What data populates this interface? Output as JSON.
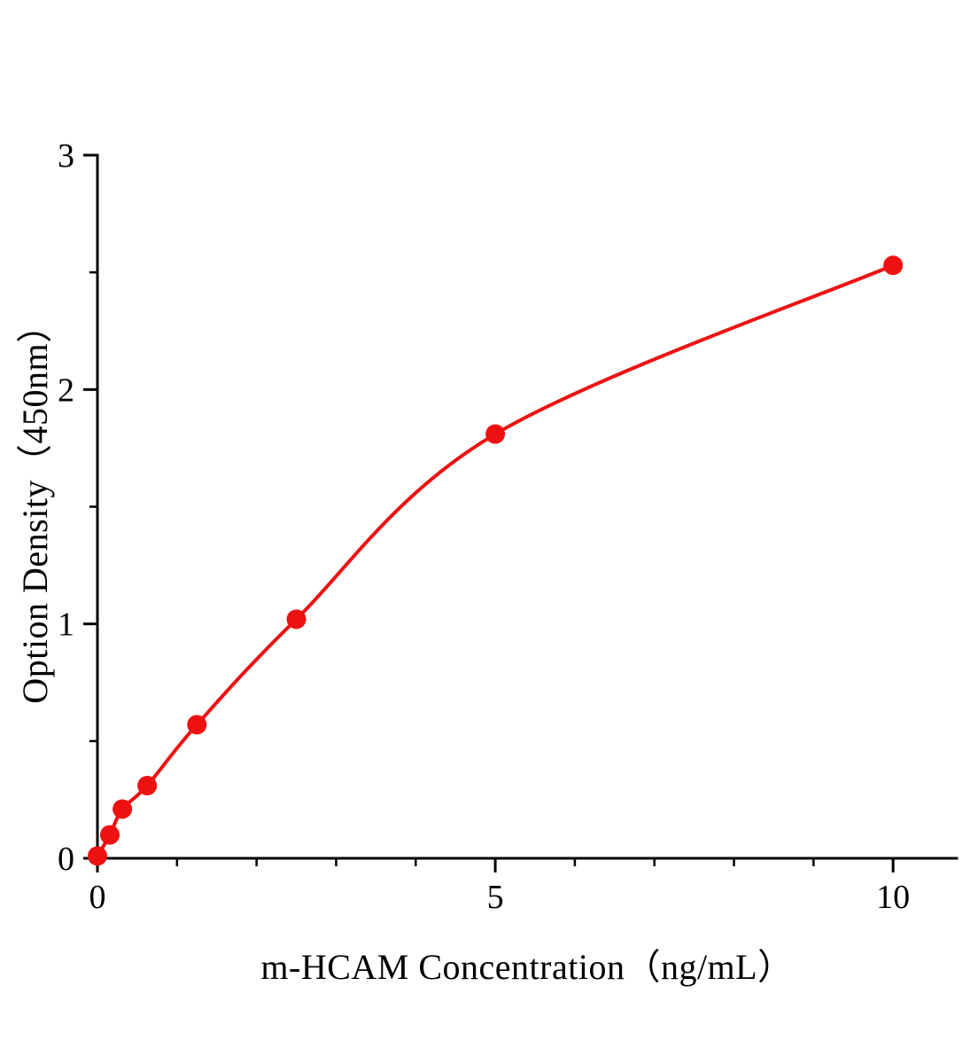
{
  "chart_data": {
    "type": "scatter",
    "title": "",
    "xlabel": "m-HCAM Concentration（ng/mL）",
    "ylabel": "Option Density（450nm）",
    "x": [
      0,
      0.156,
      0.313,
      0.625,
      1.25,
      2.5,
      5,
      10
    ],
    "y": [
      0.01,
      0.1,
      0.21,
      0.31,
      0.57,
      1.02,
      1.81,
      2.53
    ],
    "xlim": [
      0,
      10.8
    ],
    "ylim": [
      0,
      3
    ],
    "x_major_ticks": [
      0,
      5,
      10
    ],
    "x_minor_step": 1,
    "y_major_ticks": [
      0,
      1,
      2,
      3
    ],
    "y_minor_step": 0.5,
    "grid": false,
    "legend_position": "none",
    "curve_color": "#ee1111",
    "point_color": "#ee1111",
    "axis_color": "#000000",
    "point_radius": 11,
    "curve_width": 4
  }
}
